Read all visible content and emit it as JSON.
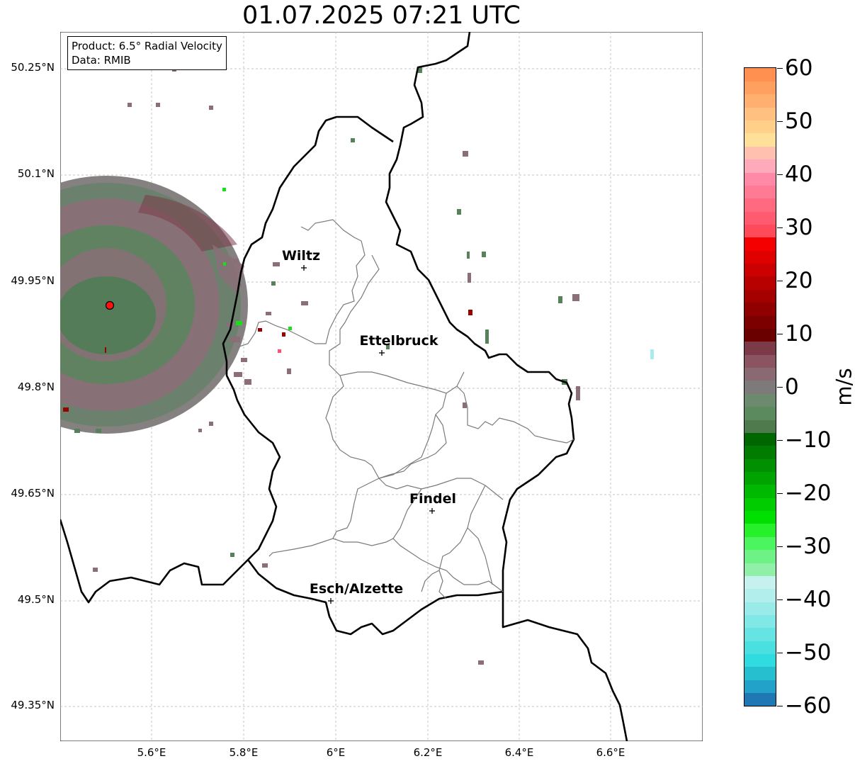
{
  "title": "01.07.2025 07:21 UTC",
  "info": {
    "product": "Product: 6.5° Radial Velocity",
    "data_source": "Data: RMIB"
  },
  "axes": {
    "lat_labels": [
      "50.25°N",
      "50.1°N",
      "49.95°N",
      "49.8°N",
      "49.65°N",
      "49.5°N",
      "49.35°N"
    ],
    "lon_labels": [
      "5.6°E",
      "5.8°E",
      "6°E",
      "6.2°E",
      "6.4°E",
      "6.6°E"
    ]
  },
  "cities": [
    {
      "name": "Wiltz"
    },
    {
      "name": "Ettelbruck"
    },
    {
      "name": "Findel"
    },
    {
      "name": "Esch/Alzette"
    }
  ],
  "colorbar": {
    "unit": "m/s",
    "min": -60,
    "max": 60,
    "tick_labels": [
      "60",
      "50",
      "40",
      "30",
      "20",
      "10",
      "0",
      "−10",
      "−20",
      "−30",
      "−40",
      "−50",
      "−60"
    ],
    "colors": [
      "#1f77b4",
      "#22a2c8",
      "#25bfd0",
      "#2fdde0",
      "#4ae0e0",
      "#66e4e3",
      "#80e8e6",
      "#99ebe9",
      "#b2eeec",
      "#c6f1ef",
      "#90f0a8",
      "#6ef286",
      "#4cf45f",
      "#26f02a",
      "#00e000",
      "#00cc00",
      "#00b800",
      "#00a400",
      "#009000",
      "#007c00",
      "#006600",
      "#4e7a4e",
      "#5a8a5e",
      "#6e8a6e",
      "#7e7a7a",
      "#8a6a72",
      "#8a5560",
      "#7a3a48",
      "#6a0000",
      "#7c0000",
      "#900000",
      "#a40000",
      "#b80000",
      "#cc0000",
      "#e00000",
      "#f50000",
      "#ff4a5a",
      "#ff5a70",
      "#ff6a80",
      "#ff7a95",
      "#ff8aa8",
      "#ffaabb",
      "#ffc0b0",
      "#ffe098",
      "#ffd08a",
      "#ffc080",
      "#ffb070",
      "#ffa060",
      "#ff9050"
    ]
  },
  "radar": {
    "site": "radar-site",
    "gate_color_green": "#55825a",
    "gate_color_mauve": "#8c6e78",
    "gate_color_brown": "#7a3a44"
  }
}
